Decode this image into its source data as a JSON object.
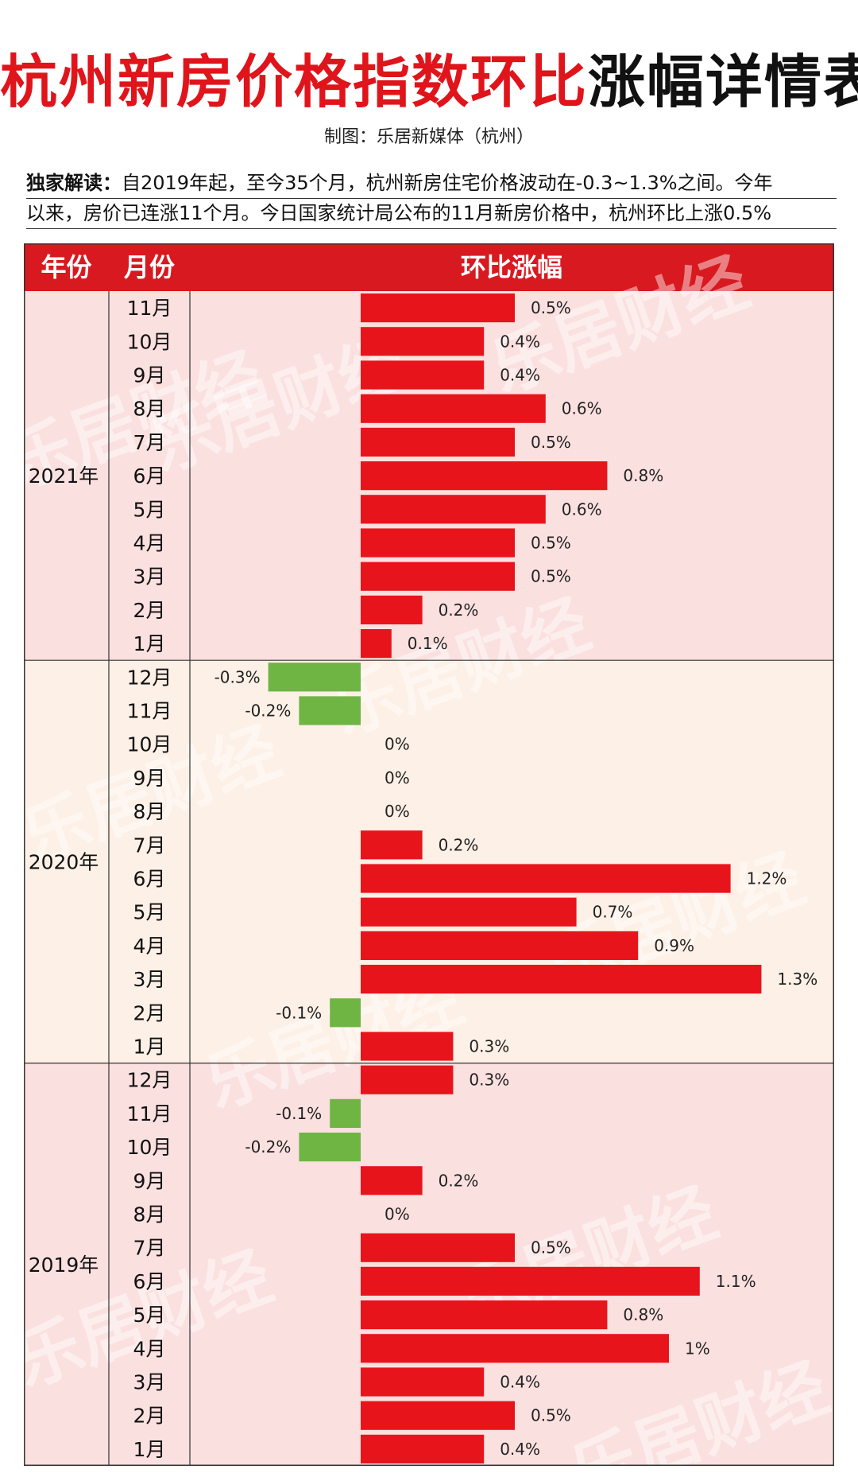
{
  "title": {
    "red": "杭州新房价格指数环比",
    "black": "涨幅详情表"
  },
  "credit": "制图：乐居新媒体（杭州）",
  "intro": {
    "label": "独家解读：",
    "line1": "自2019年起，至今35个月，杭州新房住宅价格波动在-0.3~1.3%之间。今年",
    "line2": "以来，房价已连涨11个月。今日国家统计局公布的11月新房价格中，杭州环比上涨0.5%"
  },
  "watermark": "乐居财经",
  "colors": {
    "header_bg": "#d8191f",
    "positive": "#e8141c",
    "negative": "#6fb544",
    "band_pink": "#fbe0e0",
    "band_cream": "#fdf0e6"
  },
  "chart_data": {
    "type": "bar",
    "orientation": "horizontal",
    "headers": {
      "year": "年份",
      "month": "月份",
      "value": "环比涨幅"
    },
    "unit": "%",
    "groups": [
      {
        "year": "2021年",
        "rows": [
          {
            "month": "11月",
            "value": 0.5,
            "label": "0.5%"
          },
          {
            "month": "10月",
            "value": 0.4,
            "label": "0.4%"
          },
          {
            "month": "9月",
            "value": 0.4,
            "label": "0.4%"
          },
          {
            "month": "8月",
            "value": 0.6,
            "label": "0.6%"
          },
          {
            "month": "7月",
            "value": 0.5,
            "label": "0.5%"
          },
          {
            "month": "6月",
            "value": 0.8,
            "label": "0.8%"
          },
          {
            "month": "5月",
            "value": 0.6,
            "label": "0.6%"
          },
          {
            "month": "4月",
            "value": 0.5,
            "label": "0.5%"
          },
          {
            "month": "3月",
            "value": 0.5,
            "label": "0.5%"
          },
          {
            "month": "2月",
            "value": 0.2,
            "label": "0.2%"
          },
          {
            "month": "1月",
            "value": 0.1,
            "label": "0.1%"
          }
        ]
      },
      {
        "year": "2020年",
        "rows": [
          {
            "month": "12月",
            "value": -0.3,
            "label": "-0.3%"
          },
          {
            "month": "11月",
            "value": -0.2,
            "label": "-0.2%"
          },
          {
            "month": "10月",
            "value": 0,
            "label": "0%"
          },
          {
            "month": "9月",
            "value": 0,
            "label": "0%"
          },
          {
            "month": "8月",
            "value": 0,
            "label": "0%"
          },
          {
            "month": "7月",
            "value": 0.2,
            "label": "0.2%"
          },
          {
            "month": "6月",
            "value": 1.2,
            "label": "1.2%"
          },
          {
            "month": "5月",
            "value": 0.7,
            "label": "0.7%"
          },
          {
            "month": "4月",
            "value": 0.9,
            "label": "0.9%"
          },
          {
            "month": "3月",
            "value": 1.3,
            "label": "1.3%"
          },
          {
            "month": "2月",
            "value": -0.1,
            "label": "-0.1%"
          },
          {
            "month": "1月",
            "value": 0.3,
            "label": "0.3%"
          }
        ]
      },
      {
        "year": "2019年",
        "rows": [
          {
            "month": "12月",
            "value": 0.3,
            "label": "0.3%"
          },
          {
            "month": "11月",
            "value": -0.1,
            "label": "-0.1%"
          },
          {
            "month": "10月",
            "value": -0.2,
            "label": "-0.2%"
          },
          {
            "month": "9月",
            "value": 0.2,
            "label": "0.2%"
          },
          {
            "month": "8月",
            "value": 0,
            "label": "0%"
          },
          {
            "month": "7月",
            "value": 0.5,
            "label": "0.5%"
          },
          {
            "month": "6月",
            "value": 1.1,
            "label": "1.1%"
          },
          {
            "month": "5月",
            "value": 0.8,
            "label": "0.8%"
          },
          {
            "month": "4月",
            "value": 1,
            "label": "1%"
          },
          {
            "month": "3月",
            "value": 0.4,
            "label": "0.4%"
          },
          {
            "month": "2月",
            "value": 0.5,
            "label": "0.5%"
          },
          {
            "month": "1月",
            "value": 0.4,
            "label": "0.4%"
          }
        ]
      }
    ],
    "xlim": [
      -0.3,
      1.3
    ]
  }
}
